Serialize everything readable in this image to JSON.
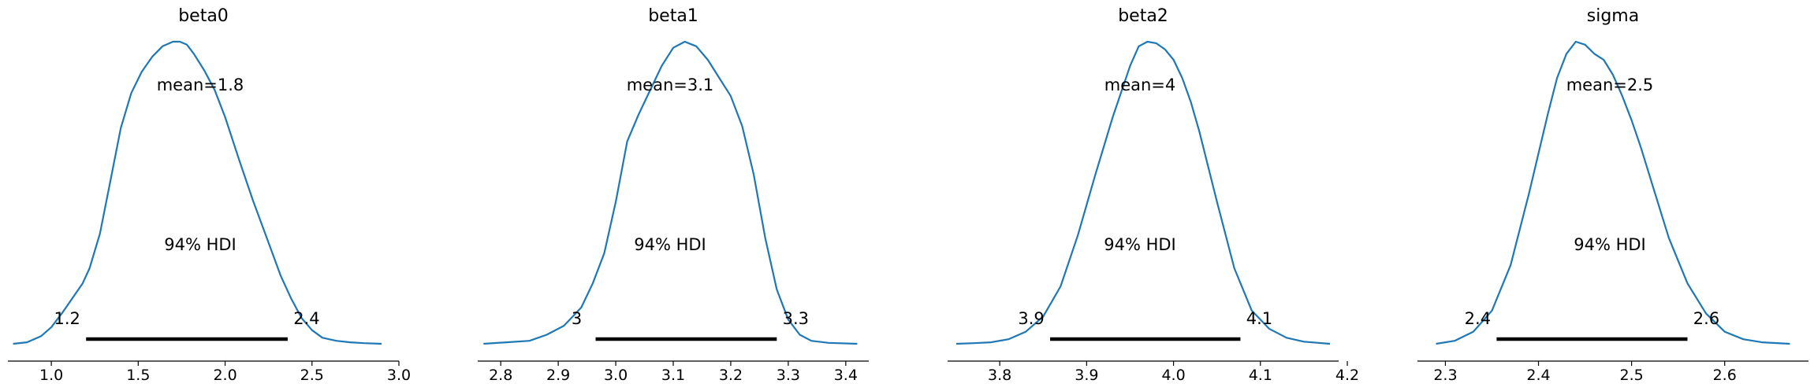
{
  "chart_data": [
    {
      "type": "area",
      "title": "beta0",
      "point_estimate_label": "mean=1.8",
      "hdi_label": "94% HDI",
      "hdi": [
        1.2,
        2.36
      ],
      "hdi_tick_labels": [
        "1.2",
        "2.4"
      ],
      "xlim": [
        0.75,
        3.0
      ],
      "xticks": [
        1.0,
        1.5,
        2.0,
        2.5,
        3.0
      ],
      "xtick_labels": [
        "1.0",
        "1.5",
        "2.0",
        "2.5",
        "3.0"
      ],
      "density": {
        "x": [
          0.78,
          0.86,
          0.94,
          1.0,
          1.06,
          1.12,
          1.18,
          1.22,
          1.28,
          1.34,
          1.4,
          1.46,
          1.52,
          1.58,
          1.64,
          1.7,
          1.74,
          1.78,
          1.82,
          1.88,
          1.94,
          2.0,
          2.08,
          2.16,
          2.24,
          2.32,
          2.38,
          2.44,
          2.5,
          2.56,
          2.64,
          2.72,
          2.8,
          2.9
        ],
        "y": [
          0.0,
          0.005,
          0.025,
          0.055,
          0.1,
          0.15,
          0.2,
          0.25,
          0.365,
          0.54,
          0.715,
          0.83,
          0.9,
          0.95,
          0.985,
          1.0,
          1.0,
          0.99,
          0.96,
          0.905,
          0.84,
          0.75,
          0.61,
          0.475,
          0.35,
          0.225,
          0.15,
          0.085,
          0.045,
          0.02,
          0.01,
          0.005,
          0.002,
          0.0
        ]
      }
    },
    {
      "type": "area",
      "title": "beta1",
      "point_estimate_label": "mean=3.1",
      "hdi_label": "94% HDI",
      "hdi": [
        2.965,
        3.28
      ],
      "hdi_tick_labels": [
        "3",
        "3.3"
      ],
      "xlim": [
        2.76,
        3.44
      ],
      "xticks": [
        2.8,
        2.9,
        3.0,
        3.1,
        3.2,
        3.3,
        3.4
      ],
      "xtick_labels": [
        "2.8",
        "2.9",
        "3.0",
        "3.1",
        "3.2",
        "3.3",
        "3.4"
      ],
      "density": {
        "x": [
          2.77,
          2.81,
          2.85,
          2.88,
          2.91,
          2.94,
          2.96,
          2.98,
          3.0,
          3.02,
          3.04,
          3.06,
          3.08,
          3.1,
          3.12,
          3.14,
          3.16,
          3.18,
          3.2,
          3.22,
          3.24,
          3.26,
          3.28,
          3.3,
          3.32,
          3.34,
          3.37,
          3.42
        ],
        "y": [
          0.0,
          0.005,
          0.01,
          0.03,
          0.06,
          0.12,
          0.2,
          0.3,
          0.47,
          0.67,
          0.76,
          0.84,
          0.92,
          0.98,
          1.0,
          0.985,
          0.94,
          0.88,
          0.82,
          0.72,
          0.56,
          0.35,
          0.18,
          0.08,
          0.03,
          0.01,
          0.003,
          0.0
        ]
      }
    },
    {
      "type": "area",
      "title": "beta2",
      "point_estimate_label": "mean=4",
      "hdi_label": "94% HDI",
      "hdi": [
        3.858,
        4.077
      ],
      "hdi_tick_labels": [
        "3.9",
        "4.1"
      ],
      "xlim": [
        3.74,
        4.19
      ],
      "xticks": [
        3.8,
        3.9,
        4.0,
        4.1,
        4.2
      ],
      "xtick_labels": [
        "3.8",
        "3.9",
        "4.0",
        "4.1",
        "4.2"
      ],
      "density": {
        "x": [
          3.75,
          3.77,
          3.79,
          3.81,
          3.83,
          3.85,
          3.87,
          3.89,
          3.91,
          3.93,
          3.95,
          3.96,
          3.97,
          3.98,
          3.99,
          4.0,
          4.01,
          4.02,
          4.03,
          4.05,
          4.07,
          4.09,
          4.11,
          4.13,
          4.15,
          4.18
        ],
        "y": [
          0.0,
          0.002,
          0.005,
          0.015,
          0.04,
          0.09,
          0.19,
          0.36,
          0.56,
          0.75,
          0.92,
          0.985,
          1.0,
          0.995,
          0.975,
          0.94,
          0.88,
          0.8,
          0.7,
          0.47,
          0.25,
          0.11,
          0.05,
          0.02,
          0.007,
          0.0
        ]
      }
    },
    {
      "type": "area",
      "title": "sigma",
      "point_estimate_label": "mean=2.5",
      "hdi_label": "94% HDI",
      "hdi": [
        2.355,
        2.56
      ],
      "hdi_tick_labels": [
        "2.4",
        "2.6"
      ],
      "xlim": [
        2.27,
        2.69
      ],
      "xticks": [
        2.3,
        2.4,
        2.5,
        2.6
      ],
      "xtick_labels": [
        "2.3",
        "2.4",
        "2.5",
        "2.6"
      ],
      "density": {
        "x": [
          2.29,
          2.31,
          2.33,
          2.35,
          2.37,
          2.39,
          2.41,
          2.42,
          2.43,
          2.44,
          2.45,
          2.46,
          2.47,
          2.48,
          2.49,
          2.5,
          2.51,
          2.52,
          2.54,
          2.56,
          2.58,
          2.6,
          2.62,
          2.64,
          2.67
        ],
        "y": [
          0.0,
          0.01,
          0.04,
          0.11,
          0.26,
          0.5,
          0.76,
          0.88,
          0.96,
          1.0,
          0.99,
          0.96,
          0.94,
          0.89,
          0.82,
          0.74,
          0.65,
          0.55,
          0.35,
          0.2,
          0.1,
          0.04,
          0.015,
          0.005,
          0.0
        ]
      }
    }
  ],
  "colors": {
    "line": "#1f77b4",
    "hdi_bar": "#000000",
    "axis": "#000000",
    "text": "#000000"
  }
}
